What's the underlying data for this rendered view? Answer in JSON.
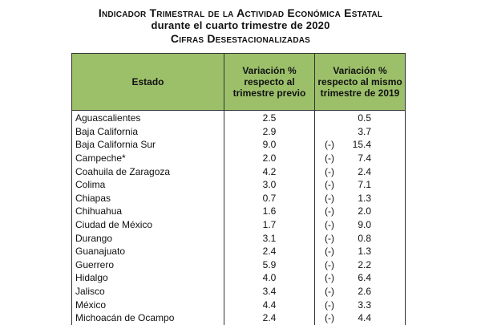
{
  "titles": {
    "line1": "Indicador Trimestral de la Actividad Económica Estatal",
    "line2": "durante el cuarto trimestre de 2020",
    "line3": "Cifras Desestacionalizadas"
  },
  "table": {
    "headers": {
      "state": "Estado",
      "col1": "Variación % respecto al trimestre previo",
      "col2": "Variación % respecto al mismo trimestre de 2019"
    },
    "rows": [
      {
        "state": "Aguascalientes",
        "v1": "2.5",
        "neg": "",
        "v2": "0.5"
      },
      {
        "state": "Baja California",
        "v1": "2.9",
        "neg": "",
        "v2": "3.7"
      },
      {
        "state": "Baja California Sur",
        "v1": "9.0",
        "neg": "(-)",
        "v2": "15.4"
      },
      {
        "state": "Campeche*",
        "v1": "2.0",
        "neg": "(-)",
        "v2": "7.4"
      },
      {
        "state": "Coahuila de Zaragoza",
        "v1": "4.2",
        "neg": "(-)",
        "v2": "2.4"
      },
      {
        "state": "Colima",
        "v1": "3.0",
        "neg": "(-)",
        "v2": "7.1"
      },
      {
        "state": "Chiapas",
        "v1": "0.7",
        "neg": "(-)",
        "v2": "1.3"
      },
      {
        "state": "Chihuahua",
        "v1": "1.6",
        "neg": "(-)",
        "v2": "2.0"
      },
      {
        "state": "Ciudad de México",
        "v1": "1.7",
        "neg": "(-)",
        "v2": "9.0"
      },
      {
        "state": "Durango",
        "v1": "3.1",
        "neg": "(-)",
        "v2": "0.8"
      },
      {
        "state": "Guanajuato",
        "v1": "2.4",
        "neg": "(-)",
        "v2": "1.3"
      },
      {
        "state": "Guerrero",
        "v1": "5.9",
        "neg": "(-)",
        "v2": "2.2"
      },
      {
        "state": "Hidalgo",
        "v1": "4.0",
        "neg": "(-)",
        "v2": "6.4"
      },
      {
        "state": "Jalisco",
        "v1": "3.4",
        "neg": "(-)",
        "v2": "2.6"
      },
      {
        "state": "México",
        "v1": "4.4",
        "neg": "(-)",
        "v2": "3.3"
      },
      {
        "state": "Michoacán de Ocampo",
        "v1": "2.4",
        "neg": "(-)",
        "v2": "4.4"
      }
    ]
  }
}
